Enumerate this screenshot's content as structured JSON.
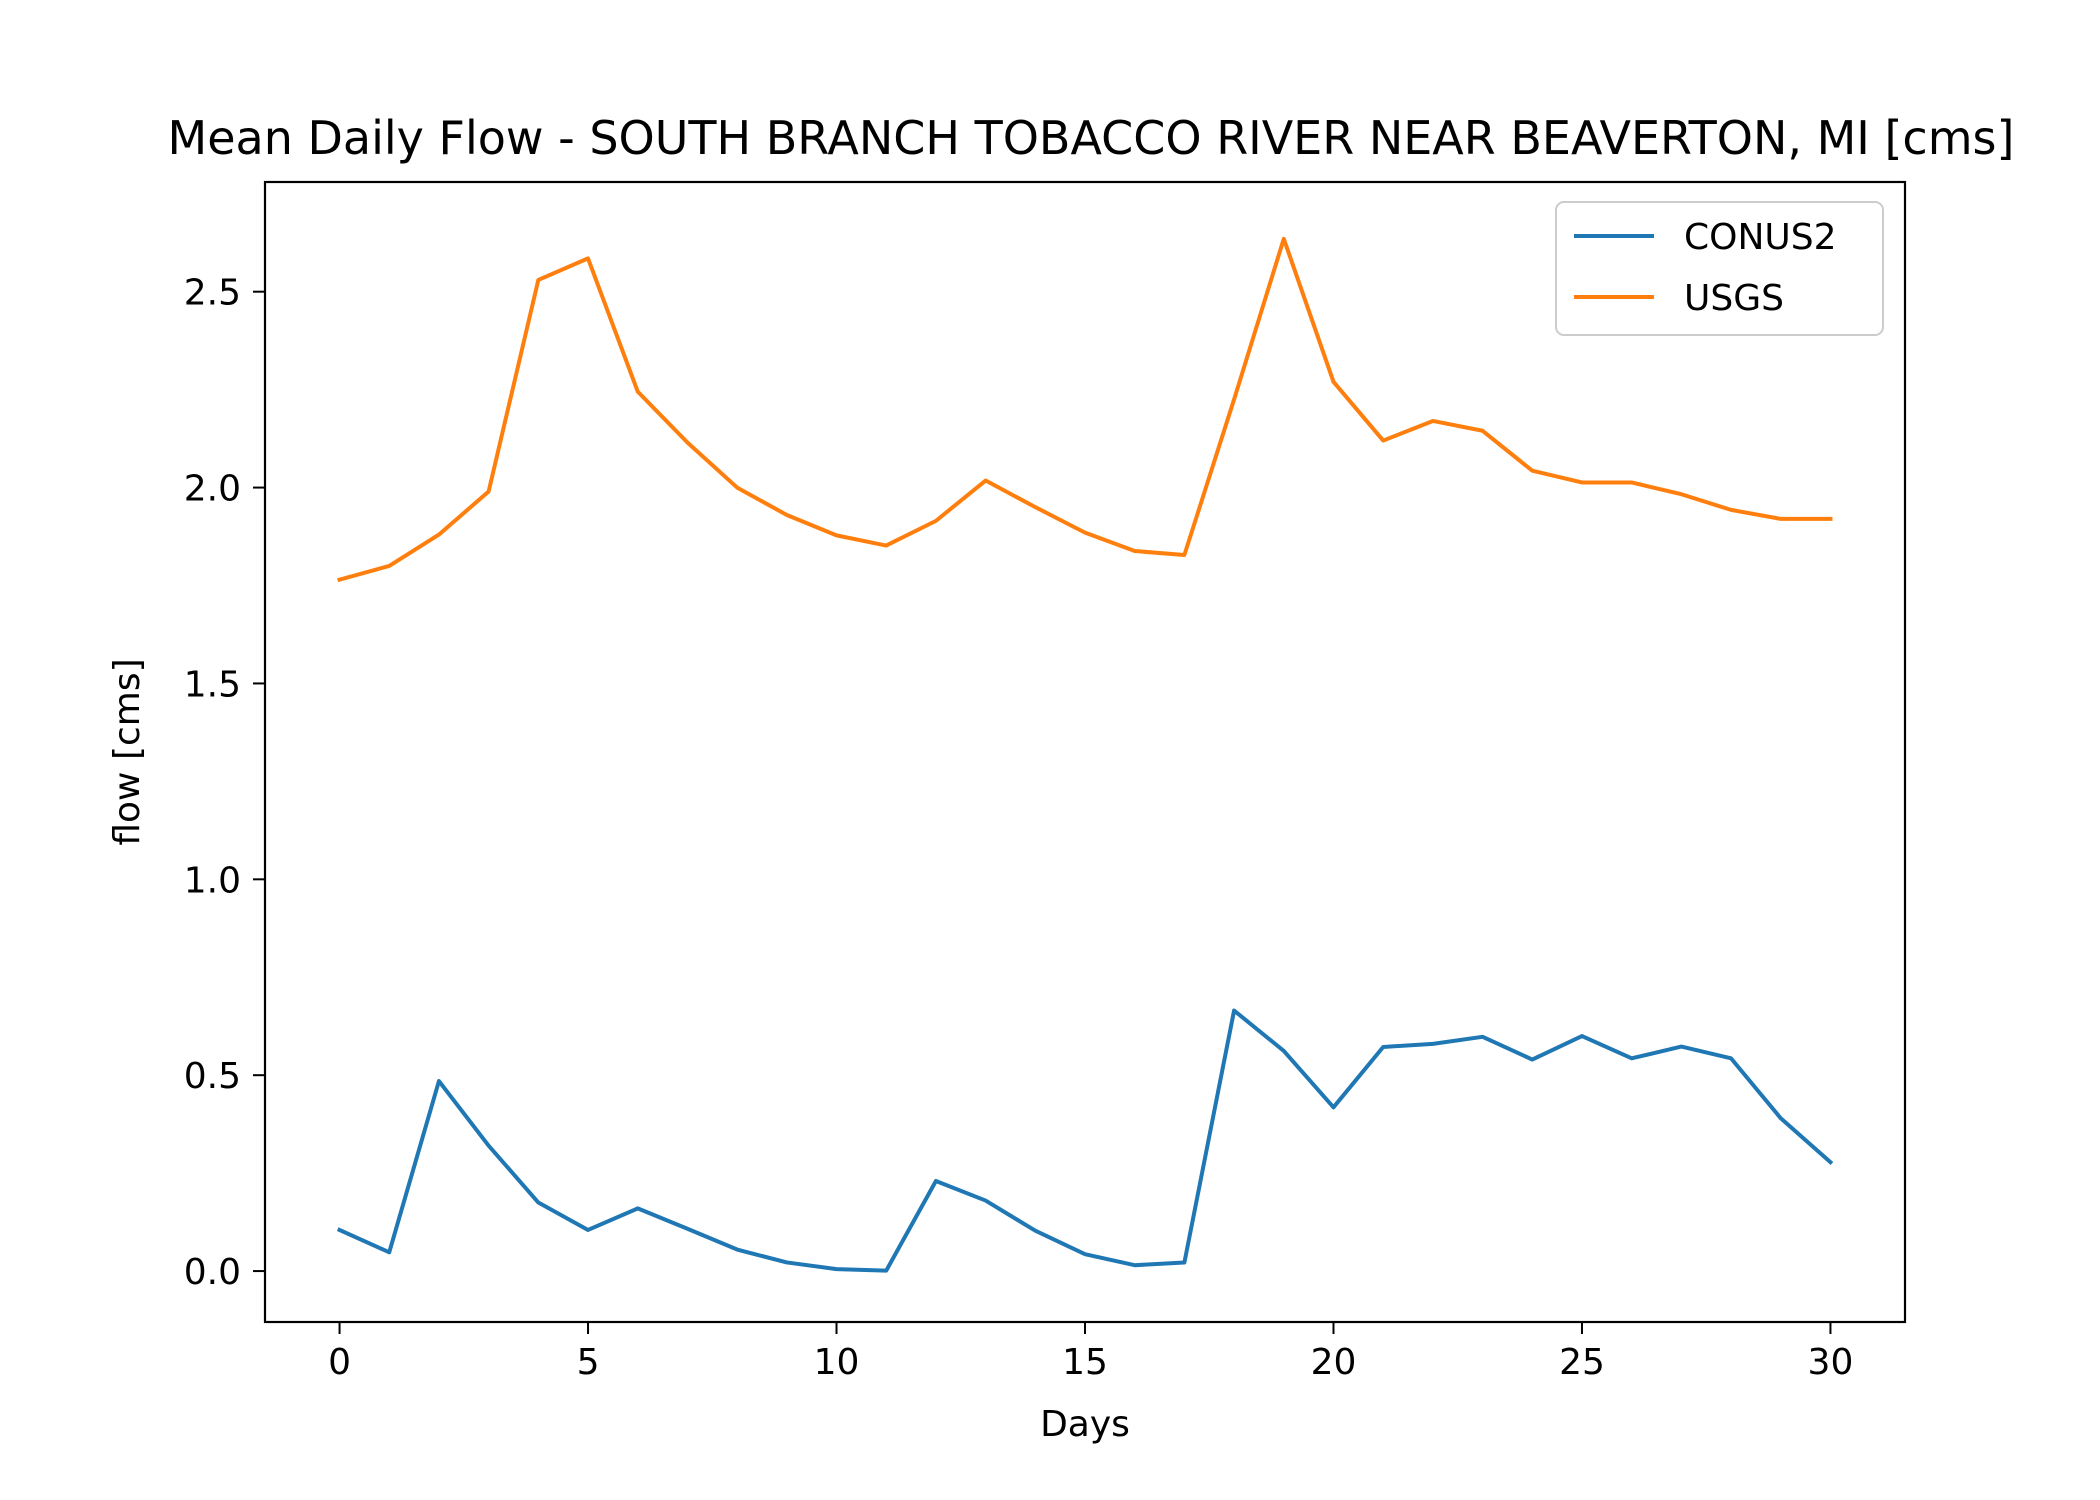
{
  "chart_data": {
    "type": "line",
    "title": "Mean Daily Flow - SOUTH BRANCH TOBACCO RIVER NEAR BEAVERTON, MI [cms]",
    "xlabel": "Days",
    "ylabel": "flow [cms]",
    "xlim": [
      -1.5,
      31.5
    ],
    "ylim": [
      -0.13,
      2.78
    ],
    "xticks": [
      0,
      5,
      10,
      15,
      20,
      25,
      30
    ],
    "yticks": [
      0.0,
      0.5,
      1.0,
      1.5,
      2.0,
      2.5
    ],
    "ytick_labels": [
      "0.0",
      "0.5",
      "1.0",
      "1.5",
      "2.0",
      "2.5"
    ],
    "grid": false,
    "legend_position": "top-right",
    "x": [
      0,
      1,
      2,
      3,
      4,
      5,
      6,
      7,
      8,
      9,
      10,
      11,
      12,
      13,
      14,
      15,
      16,
      17,
      18,
      19,
      20,
      21,
      22,
      23,
      24,
      25,
      26,
      27,
      28,
      29,
      30
    ],
    "series": [
      {
        "name": "CONUS2",
        "color": "#1f77b4",
        "values": [
          0.105,
          0.048,
          0.485,
          0.32,
          0.175,
          0.105,
          0.16,
          0.108,
          0.055,
          0.022,
          0.005,
          0.001,
          0.23,
          0.18,
          0.103,
          0.043,
          0.015,
          0.022,
          0.665,
          0.562,
          0.418,
          0.572,
          0.58,
          0.598,
          0.54,
          0.6,
          0.543,
          0.573,
          0.543,
          0.39,
          0.278
        ]
      },
      {
        "name": "USGS",
        "color": "#ff7f0e",
        "values": [
          1.765,
          1.8,
          1.88,
          1.99,
          2.53,
          2.585,
          2.245,
          2.115,
          2.0,
          1.93,
          1.878,
          1.852,
          1.915,
          2.018,
          1.95,
          1.885,
          1.838,
          1.828,
          2.225,
          2.635,
          2.27,
          2.12,
          2.17,
          2.145,
          2.043,
          2.013,
          2.013,
          1.983,
          1.943,
          1.92,
          1.92
        ]
      }
    ]
  }
}
